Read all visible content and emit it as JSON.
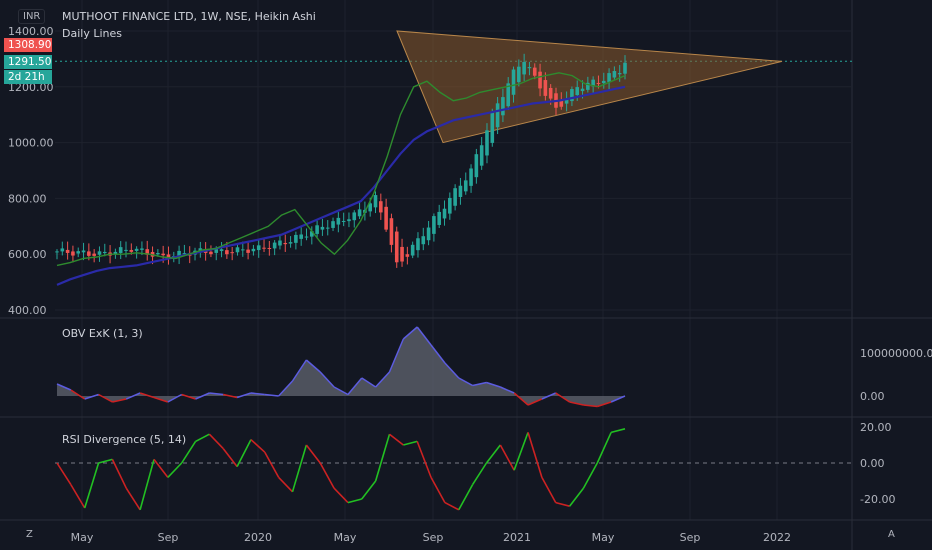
{
  "title": "MUTHOOT FINANCE LTD, 1W, NSE, Heikin Ashi",
  "subtitle": "Daily Lines",
  "currency": "INR",
  "price_tags": {
    "high": "1308.90",
    "last": "1291.50",
    "countdown": "2d 21h"
  },
  "corner_left": "Z",
  "corner_right": "A",
  "obv_label": "OBV ExK (1, 3)",
  "rsi_label": "RSI Divergence (5, 14)",
  "colors": {
    "bg": "#131722",
    "up": "#26a69a",
    "down": "#ef5350",
    "ema_fast": "#2e8b2e",
    "ema_slow": "#2a2aa8",
    "triangle_fill": "#8a5a2b",
    "rsi_up": "#22c022",
    "rsi_down": "#cc2222",
    "obv_fill": "#5d606b",
    "obv_line_up": "#5c5ce0",
    "obv_line_down": "#cc2222"
  },
  "chart_data": [
    {
      "type": "candlestick",
      "title": "MUTHOOT FINANCE LTD, 1W, NSE, Heikin Ashi",
      "y_ticks": [
        "1400.00",
        "1200.00",
        "1000.00",
        "800.00",
        "600.00",
        "400.00"
      ],
      "x_ticks": [
        "May",
        "Sep",
        "2020",
        "May",
        "Sep",
        "2021",
        "May",
        "Sep",
        "2022"
      ],
      "ylim": [
        400,
        1400
      ],
      "grid": true,
      "annotations": [
        "symmetrical triangle from 1400 (2020-Jul) and 1000 (2020-Sep) converging near 1291 (2022-Jan)"
      ],
      "horizontal_line": 1291.5,
      "ema_fast": [
        560,
        570,
        585,
        590,
        600,
        600,
        605,
        600,
        590,
        585,
        600,
        615,
        620,
        640,
        660,
        680,
        700,
        740,
        760,
        700,
        640,
        600,
        650,
        720,
        820,
        950,
        1100,
        1200,
        1220,
        1180,
        1150,
        1160,
        1180,
        1190,
        1200,
        1210,
        1230,
        1240,
        1250,
        1240,
        1210,
        1200,
        1220,
        1240
      ],
      "ema_slow": [
        490,
        510,
        525,
        540,
        550,
        555,
        560,
        570,
        580,
        590,
        600,
        610,
        620,
        630,
        640,
        650,
        660,
        670,
        690,
        710,
        730,
        750,
        770,
        790,
        840,
        900,
        960,
        1010,
        1040,
        1060,
        1080,
        1090,
        1100,
        1110,
        1120,
        1130,
        1140,
        1145,
        1150,
        1160,
        1170,
        1180,
        1190,
        1200
      ]
    },
    {
      "type": "area",
      "title": "OBV ExK (1, 3)",
      "y_ticks": [
        "100000000.00",
        "0.00"
      ],
      "values": [
        0.4,
        0.2,
        -0.1,
        0.05,
        -0.2,
        -0.1,
        0.1,
        -0.05,
        -0.2,
        0.05,
        -0.1,
        0.1,
        0.05,
        -0.05,
        0.1,
        0.05,
        0.0,
        0.5,
        1.2,
        0.8,
        0.3,
        0.05,
        0.6,
        0.3,
        0.8,
        1.9,
        2.3,
        1.7,
        1.1,
        0.6,
        0.35,
        0.45,
        0.3,
        0.1,
        -0.3,
        -0.1,
        0.1,
        -0.2,
        -0.3,
        -0.35,
        -0.2,
        0.0
      ]
    },
    {
      "type": "line",
      "title": "RSI Divergence (5, 14)",
      "y_ticks": [
        "20.00",
        "0.00",
        "-20.00"
      ],
      "values": [
        0,
        -12,
        -25,
        0,
        2,
        -14,
        -26,
        2,
        -8,
        0,
        12,
        16,
        8,
        -2,
        13,
        6,
        -8,
        -16,
        10,
        0,
        -14,
        -22,
        -20,
        -10,
        16,
        10,
        12,
        -8,
        -22,
        -26,
        -12,
        0,
        10,
        -4,
        17,
        -8,
        -22,
        -24,
        -14,
        0,
        17,
        19
      ]
    }
  ]
}
